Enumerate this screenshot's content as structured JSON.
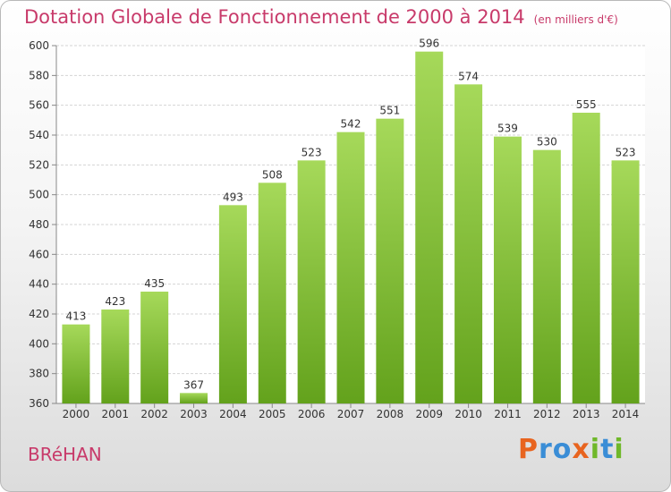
{
  "header": {
    "title": "Dotation Globale de Fonctionnement de 2000 à 2014",
    "unit": "(en milliers d'€)"
  },
  "footer": {
    "commune": "BRéHAN",
    "brand": "Proxiti"
  },
  "colors": {
    "bar_light": "#a6d95a",
    "bar_dark": "#63a21c",
    "title": "#c83a6a",
    "brand_letters": [
      "#e8641f",
      "#3a8dd6",
      "#3a8dd6",
      "#e8641f",
      "#6fb82a",
      "#3a8dd6",
      "#6fb82a"
    ]
  },
  "chart_data": {
    "type": "bar",
    "categories": [
      "2000",
      "2001",
      "2002",
      "2003",
      "2004",
      "2005",
      "2006",
      "2007",
      "2008",
      "2009",
      "2010",
      "2011",
      "2012",
      "2013",
      "2014"
    ],
    "values": [
      413,
      423,
      435,
      367,
      493,
      508,
      523,
      542,
      551,
      596,
      574,
      539,
      530,
      555,
      523
    ],
    "title": "Dotation Globale de Fonctionnement de 2000 à 2014",
    "ylim": [
      360,
      600
    ],
    "yticks": [
      360,
      380,
      400,
      420,
      440,
      460,
      480,
      500,
      520,
      540,
      560,
      580,
      600
    ],
    "grid": true,
    "legend": "none"
  }
}
